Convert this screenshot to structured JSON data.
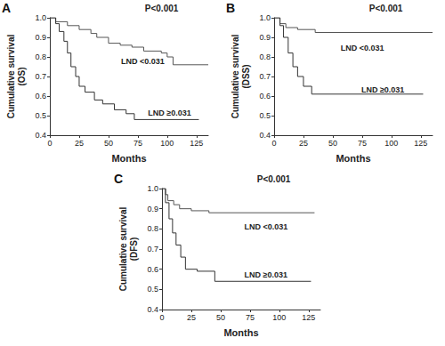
{
  "chart_data": [
    {
      "type": "line",
      "title": "A",
      "x_label": "Months",
      "y_label": "Cumulative survival\n(OS)",
      "annotations": [
        "P<0.001"
      ],
      "xlim": [
        0,
        135
      ],
      "xticks": [
        0,
        25,
        50,
        75,
        100,
        125
      ],
      "ylim": [
        0.4,
        1
      ],
      "yticks": [
        0.4,
        0.5,
        0.6,
        0.7,
        0.8,
        0.9,
        {
          "value": 1,
          "label": "1.0"
        }
      ],
      "grid": false,
      "line_style": "step",
      "series": [
        {
          "name": "LND <0.031",
          "color": "#555555",
          "x": [
            0,
            5,
            15,
            25,
            35,
            40,
            50,
            60,
            70,
            80,
            95,
            100,
            105,
            135
          ],
          "values": [
            1,
            0.98,
            0.96,
            0.94,
            0.92,
            0.9,
            0.87,
            0.86,
            0.85,
            0.83,
            0.82,
            0.8,
            0.76,
            0.76
          ]
        },
        {
          "name": "LND ≥0.031",
          "color": "#333333",
          "x": [
            0,
            5,
            8,
            12,
            15,
            18,
            22,
            25,
            30,
            38,
            45,
            55,
            65,
            72,
            127
          ],
          "values": [
            1,
            0.97,
            0.93,
            0.88,
            0.82,
            0.75,
            0.7,
            0.65,
            0.62,
            0.58,
            0.56,
            0.53,
            0.51,
            0.48,
            0.48
          ]
        }
      ]
    },
    {
      "type": "line",
      "title": "B",
      "x_label": "Months",
      "y_label": "Cumulative survival\n(DSS)",
      "annotations": [
        "P<0.001"
      ],
      "xlim": [
        0,
        135
      ],
      "xticks": [
        0,
        25,
        50,
        75,
        100,
        125
      ],
      "ylim": [
        0.4,
        1
      ],
      "yticks": [
        0.4,
        0.5,
        0.6,
        0.7,
        0.8,
        0.9,
        {
          "value": 1,
          "label": "1.0"
        }
      ],
      "grid": false,
      "line_style": "step",
      "series": [
        {
          "name": "LND <0.031",
          "color": "#555555",
          "x": [
            0,
            5,
            10,
            20,
            35,
            135
          ],
          "values": [
            1,
            0.97,
            0.95,
            0.94,
            0.925,
            0.925
          ]
        },
        {
          "name": "LND ≥0.031",
          "color": "#333333",
          "x": [
            0,
            5,
            8,
            12,
            16,
            20,
            25,
            32,
            127
          ],
          "values": [
            1,
            0.96,
            0.9,
            0.82,
            0.75,
            0.7,
            0.65,
            0.61,
            0.61
          ]
        }
      ]
    },
    {
      "type": "line",
      "title": "C",
      "x_label": "Months",
      "y_label": "Cumulative survival\n(DFS)",
      "annotations": [
        "P<0.001"
      ],
      "xlim": [
        0,
        135
      ],
      "xticks": [
        0,
        25,
        50,
        75,
        100,
        125
      ],
      "ylim": [
        0.4,
        1
      ],
      "yticks": [
        0.4,
        0.5,
        0.6,
        0.7,
        0.8,
        0.9,
        {
          "value": 1,
          "label": "1.0"
        }
      ],
      "grid": false,
      "line_style": "step",
      "series": [
        {
          "name": "LND <0.031",
          "color": "#555555",
          "x": [
            0,
            3,
            5,
            10,
            15,
            25,
            40,
            130
          ],
          "values": [
            1,
            0.97,
            0.94,
            0.92,
            0.9,
            0.89,
            0.88,
            0.88
          ]
        },
        {
          "name": "LND ≥0.031",
          "color": "#333333",
          "x": [
            0,
            3,
            6,
            9,
            12,
            16,
            20,
            30,
            45,
            127
          ],
          "values": [
            1,
            0.93,
            0.85,
            0.78,
            0.72,
            0.66,
            0.6,
            0.59,
            0.54,
            0.54
          ]
        }
      ]
    }
  ]
}
